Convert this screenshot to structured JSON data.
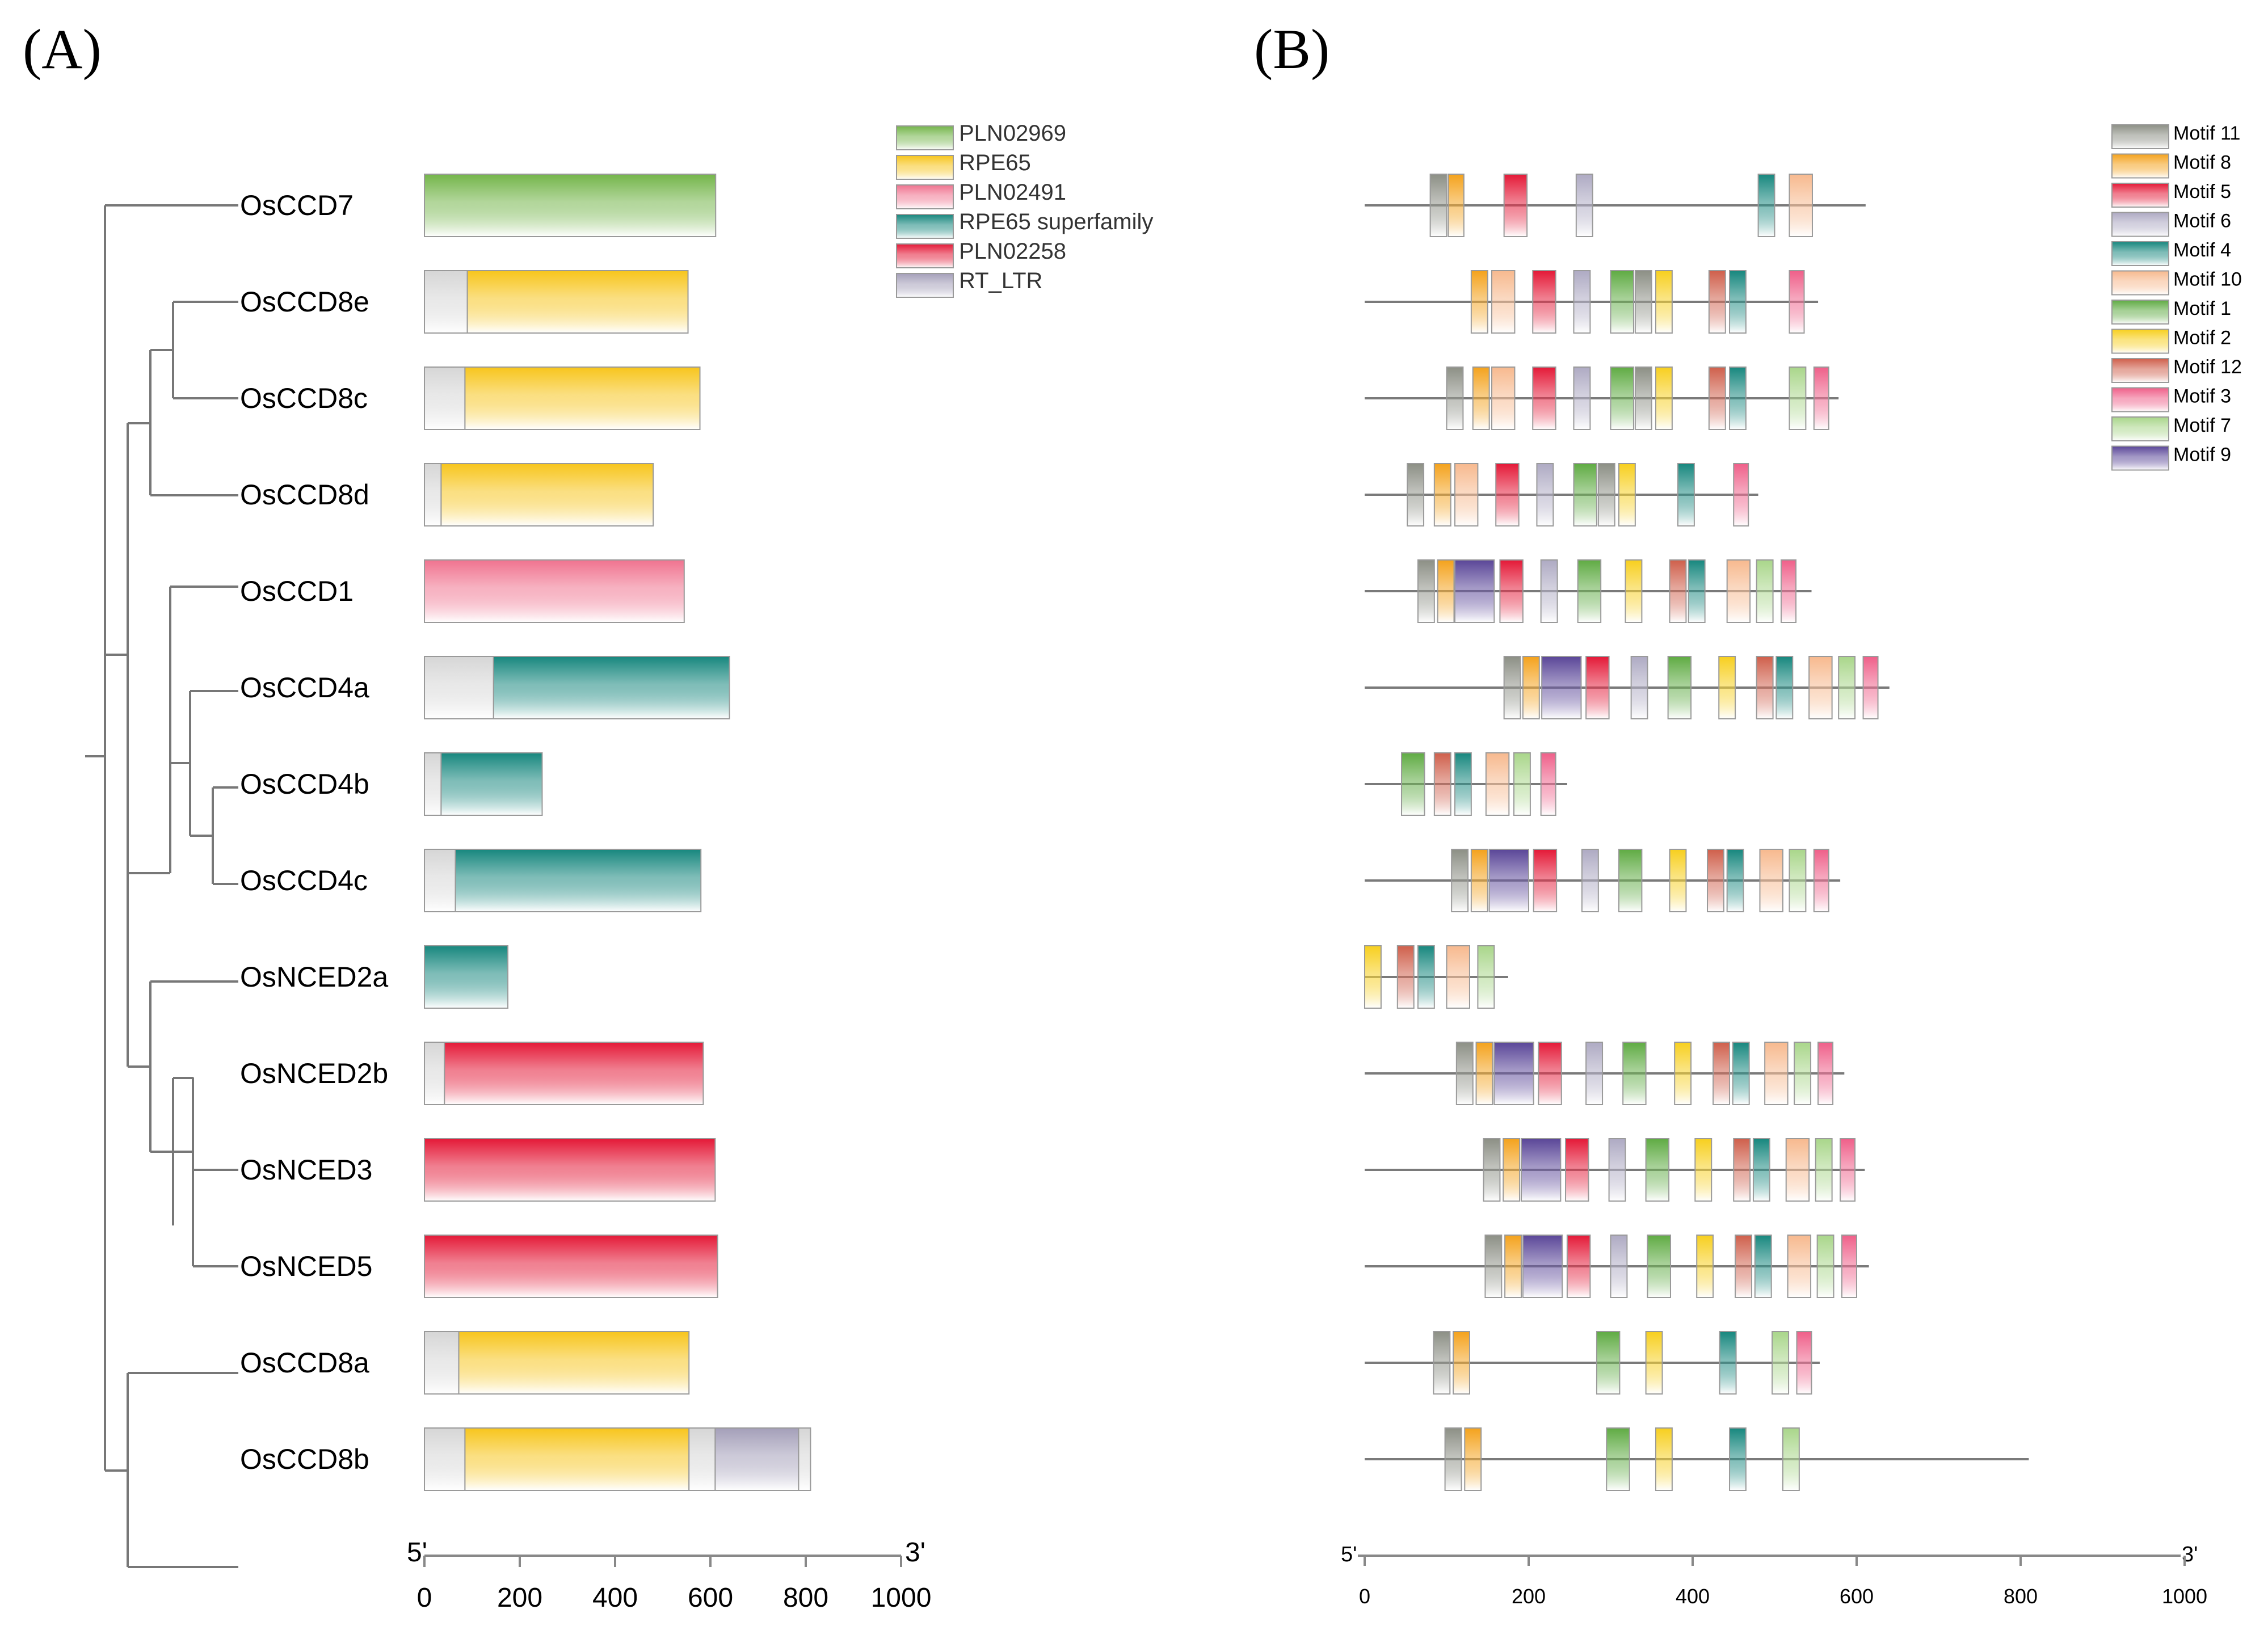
{
  "figure": {
    "panel_a_label": "(A)",
    "panel_b_label": "(B)"
  },
  "colors": {
    "PLN02969": "#74b54a",
    "RPE65": "#f7c51c",
    "PLN02491": "#f0738f",
    "RPE65 superfamily": "#17877e",
    "PLN02258": "#e41937",
    "RT_LTR": "#a49fb9",
    "background_domain": "#d6d6d6",
    "Motif 11": "#8c8f85",
    "Motif 8": "#f4a21c",
    "Motif 5": "#e41937",
    "Motif 6": "#aeaac3",
    "Motif 4": "#17877e",
    "Motif 10": "#f7b98e",
    "Motif 1": "#5fab43",
    "Motif 2": "#f7cf1e",
    "Motif 12": "#cf5f4b",
    "Motif 3": "#ef5f89",
    "Motif 7": "#a9d68a",
    "Motif 9": "#5a4698"
  },
  "domain_legend": [
    "PLN02969",
    "RPE65",
    "PLN02491",
    "RPE65 superfamily",
    "PLN02258",
    "RT_LTR"
  ],
  "motif_legend": [
    "Motif 11",
    "Motif 8",
    "Motif 5",
    "Motif 6",
    "Motif 4",
    "Motif 10",
    "Motif 1",
    "Motif 2",
    "Motif 12",
    "Motif 3",
    "Motif 7",
    "Motif 9"
  ],
  "axis_a": {
    "start_label": "5'",
    "end_label": "3'",
    "range": [
      0,
      1000
    ],
    "ticks": [
      0,
      200,
      400,
      600,
      800,
      1000
    ]
  },
  "axis_b": {
    "start_label": "5'",
    "end_label": "3'",
    "range": [
      0,
      1000
    ],
    "ticks": [
      0,
      200,
      400,
      600,
      800,
      1000
    ]
  },
  "genes": [
    {
      "name": "OsCCD7",
      "length": 611,
      "domains": [
        {
          "type": "PLN02969",
          "start": 0,
          "end": 611
        }
      ],
      "motifs": [
        {
          "m": "Motif 11",
          "s": 80,
          "e": 100
        },
        {
          "m": "Motif 8",
          "s": 102,
          "e": 121
        },
        {
          "m": "Motif 5",
          "s": 170,
          "e": 198
        },
        {
          "m": "Motif 6",
          "s": 258,
          "e": 278
        },
        {
          "m": "Motif 4",
          "s": 480,
          "e": 500
        },
        {
          "m": "Motif 10",
          "s": 518,
          "e": 546
        }
      ]
    },
    {
      "name": "OsCCD8e",
      "length": 553,
      "domains": [
        {
          "type": "bg",
          "start": 0,
          "end": 90
        },
        {
          "type": "RPE65",
          "start": 90,
          "end": 553
        }
      ],
      "motifs": [
        {
          "m": "Motif 8",
          "s": 130,
          "e": 150
        },
        {
          "m": "Motif 10",
          "s": 155,
          "e": 183
        },
        {
          "m": "Motif 5",
          "s": 205,
          "e": 233
        },
        {
          "m": "Motif 6",
          "s": 255,
          "e": 275
        },
        {
          "m": "Motif 1",
          "s": 300,
          "e": 328
        },
        {
          "m": "Motif 11",
          "s": 330,
          "e": 350
        },
        {
          "m": "Motif 2",
          "s": 355,
          "e": 375
        },
        {
          "m": "Motif 12",
          "s": 420,
          "e": 440
        },
        {
          "m": "Motif 4",
          "s": 445,
          "e": 465
        },
        {
          "m": "Motif 3",
          "s": 518,
          "e": 536
        }
      ]
    },
    {
      "name": "OsCCD8c",
      "length": 578,
      "domains": [
        {
          "type": "bg",
          "start": 0,
          "end": 85
        },
        {
          "type": "RPE65",
          "start": 85,
          "end": 578
        }
      ],
      "motifs": [
        {
          "m": "Motif 11",
          "s": 100,
          "e": 120
        },
        {
          "m": "Motif 8",
          "s": 132,
          "e": 152
        },
        {
          "m": "Motif 10",
          "s": 155,
          "e": 183
        },
        {
          "m": "Motif 5",
          "s": 205,
          "e": 233
        },
        {
          "m": "Motif 6",
          "s": 255,
          "e": 275
        },
        {
          "m": "Motif 1",
          "s": 300,
          "e": 328
        },
        {
          "m": "Motif 11",
          "s": 330,
          "e": 350
        },
        {
          "m": "Motif 2",
          "s": 355,
          "e": 375
        },
        {
          "m": "Motif 12",
          "s": 420,
          "e": 440
        },
        {
          "m": "Motif 4",
          "s": 445,
          "e": 465
        },
        {
          "m": "Motif 7",
          "s": 518,
          "e": 538
        },
        {
          "m": "Motif 3",
          "s": 548,
          "e": 566
        }
      ]
    },
    {
      "name": "OsCCD8d",
      "length": 480,
      "domains": [
        {
          "type": "bg",
          "start": 0,
          "end": 35
        },
        {
          "type": "RPE65",
          "start": 35,
          "end": 480
        }
      ],
      "motifs": [
        {
          "m": "Motif 11",
          "s": 52,
          "e": 72
        },
        {
          "m": "Motif 8",
          "s": 85,
          "e": 105
        },
        {
          "m": "Motif 10",
          "s": 110,
          "e": 138
        },
        {
          "m": "Motif 5",
          "s": 160,
          "e": 188
        },
        {
          "m": "Motif 6",
          "s": 210,
          "e": 230
        },
        {
          "m": "Motif 1",
          "s": 255,
          "e": 283
        },
        {
          "m": "Motif 11",
          "s": 285,
          "e": 305
        },
        {
          "m": "Motif 2",
          "s": 310,
          "e": 330
        },
        {
          "m": "Motif 4",
          "s": 382,
          "e": 402
        },
        {
          "m": "Motif 3",
          "s": 450,
          "e": 468
        }
      ]
    },
    {
      "name": "OsCCD1",
      "length": 545,
      "domains": [
        {
          "type": "PLN02491",
          "start": 0,
          "end": 545
        }
      ],
      "motifs": [
        {
          "m": "Motif 11",
          "s": 65,
          "e": 85
        },
        {
          "m": "Motif 8",
          "s": 89,
          "e": 109
        },
        {
          "m": "Motif 9",
          "s": 110,
          "e": 158
        },
        {
          "m": "Motif 5",
          "s": 165,
          "e": 193
        },
        {
          "m": "Motif 6",
          "s": 215,
          "e": 235
        },
        {
          "m": "Motif 1",
          "s": 260,
          "e": 288
        },
        {
          "m": "Motif 2",
          "s": 318,
          "e": 338
        },
        {
          "m": "Motif 12",
          "s": 372,
          "e": 392
        },
        {
          "m": "Motif 4",
          "s": 395,
          "e": 415
        },
        {
          "m": "Motif 10",
          "s": 442,
          "e": 470
        },
        {
          "m": "Motif 7",
          "s": 478,
          "e": 498
        },
        {
          "m": "Motif 3",
          "s": 508,
          "e": 526
        }
      ]
    },
    {
      "name": "OsCCD4a",
      "length": 640,
      "domains": [
        {
          "type": "bg",
          "start": 0,
          "end": 145
        },
        {
          "type": "RPE65 superfamily",
          "start": 145,
          "end": 640
        }
      ],
      "motifs": [
        {
          "m": "Motif 11",
          "s": 170,
          "e": 190
        },
        {
          "m": "Motif 8",
          "s": 193,
          "e": 213
        },
        {
          "m": "Motif 9",
          "s": 216,
          "e": 264
        },
        {
          "m": "Motif 5",
          "s": 270,
          "e": 298
        },
        {
          "m": "Motif 6",
          "s": 325,
          "e": 345
        },
        {
          "m": "Motif 1",
          "s": 370,
          "e": 398
        },
        {
          "m": "Motif 2",
          "s": 432,
          "e": 452
        },
        {
          "m": "Motif 12",
          "s": 478,
          "e": 498
        },
        {
          "m": "Motif 4",
          "s": 502,
          "e": 522
        },
        {
          "m": "Motif 10",
          "s": 542,
          "e": 570
        },
        {
          "m": "Motif 7",
          "s": 578,
          "e": 598
        },
        {
          "m": "Motif 3",
          "s": 608,
          "e": 626
        }
      ]
    },
    {
      "name": "OsCCD4b",
      "length": 247,
      "domains": [
        {
          "type": "bg",
          "start": 0,
          "end": 35
        },
        {
          "type": "RPE65 superfamily",
          "start": 35,
          "end": 247
        }
      ],
      "motifs": [
        {
          "m": "Motif 1",
          "s": 45,
          "e": 73
        },
        {
          "m": "Motif 12",
          "s": 85,
          "e": 105
        },
        {
          "m": "Motif 4",
          "s": 110,
          "e": 130
        },
        {
          "m": "Motif 10",
          "s": 148,
          "e": 176
        },
        {
          "m": "Motif 7",
          "s": 182,
          "e": 202
        },
        {
          "m": "Motif 3",
          "s": 215,
          "e": 233
        }
      ]
    },
    {
      "name": "OsCCD4c",
      "length": 580,
      "domains": [
        {
          "type": "bg",
          "start": 0,
          "end": 65
        },
        {
          "type": "RPE65 superfamily",
          "start": 65,
          "end": 580
        }
      ],
      "motifs": [
        {
          "m": "Motif 11",
          "s": 106,
          "e": 126
        },
        {
          "m": "Motif 8",
          "s": 130,
          "e": 150
        },
        {
          "m": "Motif 9",
          "s": 152,
          "e": 200
        },
        {
          "m": "Motif 5",
          "s": 206,
          "e": 234
        },
        {
          "m": "Motif 6",
          "s": 265,
          "e": 285
        },
        {
          "m": "Motif 1",
          "s": 310,
          "e": 338
        },
        {
          "m": "Motif 2",
          "s": 372,
          "e": 392
        },
        {
          "m": "Motif 12",
          "s": 418,
          "e": 438
        },
        {
          "m": "Motif 4",
          "s": 442,
          "e": 462
        },
        {
          "m": "Motif 10",
          "s": 482,
          "e": 510
        },
        {
          "m": "Motif 7",
          "s": 518,
          "e": 538
        },
        {
          "m": "Motif 3",
          "s": 548,
          "e": 566
        }
      ]
    },
    {
      "name": "OsNCED2a",
      "length": 175,
      "domains": [
        {
          "type": "RPE65 superfamily",
          "start": 0,
          "end": 175
        }
      ],
      "motifs": [
        {
          "m": "Motif 2",
          "s": 0,
          "e": 20
        },
        {
          "m": "Motif 12",
          "s": 40,
          "e": 60
        },
        {
          "m": "Motif 4",
          "s": 65,
          "e": 85
        },
        {
          "m": "Motif 10",
          "s": 100,
          "e": 128
        },
        {
          "m": "Motif 7",
          "s": 138,
          "e": 158
        }
      ]
    },
    {
      "name": "OsNCED2b",
      "length": 585,
      "domains": [
        {
          "type": "bg",
          "start": 0,
          "end": 42
        },
        {
          "type": "PLN02258",
          "start": 42,
          "end": 585
        }
      ],
      "motifs": [
        {
          "m": "Motif 11",
          "s": 112,
          "e": 132
        },
        {
          "m": "Motif 8",
          "s": 136,
          "e": 156
        },
        {
          "m": "Motif 9",
          "s": 158,
          "e": 206
        },
        {
          "m": "Motif 5",
          "s": 212,
          "e": 240
        },
        {
          "m": "Motif 6",
          "s": 270,
          "e": 290
        },
        {
          "m": "Motif 1",
          "s": 315,
          "e": 343
        },
        {
          "m": "Motif 2",
          "s": 378,
          "e": 398
        },
        {
          "m": "Motif 12",
          "s": 425,
          "e": 445
        },
        {
          "m": "Motif 4",
          "s": 449,
          "e": 469
        },
        {
          "m": "Motif 10",
          "s": 488,
          "e": 516
        },
        {
          "m": "Motif 7",
          "s": 524,
          "e": 544
        },
        {
          "m": "Motif 3",
          "s": 553,
          "e": 571
        }
      ]
    },
    {
      "name": "OsNCED3",
      "length": 610,
      "domains": [
        {
          "type": "PLN02258",
          "start": 0,
          "end": 610
        }
      ],
      "motifs": [
        {
          "m": "Motif 11",
          "s": 145,
          "e": 165
        },
        {
          "m": "Motif 8",
          "s": 169,
          "e": 189
        },
        {
          "m": "Motif 9",
          "s": 191,
          "e": 239
        },
        {
          "m": "Motif 5",
          "s": 245,
          "e": 273
        },
        {
          "m": "Motif 6",
          "s": 298,
          "e": 318
        },
        {
          "m": "Motif 1",
          "s": 343,
          "e": 371
        },
        {
          "m": "Motif 2",
          "s": 403,
          "e": 423
        },
        {
          "m": "Motif 12",
          "s": 450,
          "e": 470
        },
        {
          "m": "Motif 4",
          "s": 474,
          "e": 494
        },
        {
          "m": "Motif 10",
          "s": 514,
          "e": 542
        },
        {
          "m": "Motif 7",
          "s": 550,
          "e": 570
        },
        {
          "m": "Motif 3",
          "s": 580,
          "e": 598
        }
      ]
    },
    {
      "name": "OsNCED5",
      "length": 615,
      "domains": [
        {
          "type": "PLN02258",
          "start": 0,
          "end": 615
        }
      ],
      "motifs": [
        {
          "m": "Motif 11",
          "s": 147,
          "e": 167
        },
        {
          "m": "Motif 8",
          "s": 171,
          "e": 191
        },
        {
          "m": "Motif 9",
          "s": 193,
          "e": 241
        },
        {
          "m": "Motif 5",
          "s": 247,
          "e": 275
        },
        {
          "m": "Motif 6",
          "s": 300,
          "e": 320
        },
        {
          "m": "Motif 1",
          "s": 345,
          "e": 373
        },
        {
          "m": "Motif 2",
          "s": 405,
          "e": 425
        },
        {
          "m": "Motif 12",
          "s": 452,
          "e": 472
        },
        {
          "m": "Motif 4",
          "s": 476,
          "e": 496
        },
        {
          "m": "Motif 10",
          "s": 516,
          "e": 544
        },
        {
          "m": "Motif 7",
          "s": 552,
          "e": 572
        },
        {
          "m": "Motif 3",
          "s": 582,
          "e": 600
        }
      ]
    },
    {
      "name": "OsCCD8a",
      "length": 555,
      "domains": [
        {
          "type": "bg",
          "start": 0,
          "end": 72
        },
        {
          "type": "RPE65",
          "start": 72,
          "end": 555
        }
      ],
      "motifs": [
        {
          "m": "Motif 11",
          "s": 84,
          "e": 104
        },
        {
          "m": "Motif 8",
          "s": 108,
          "e": 128
        },
        {
          "m": "Motif 1",
          "s": 283,
          "e": 311
        },
        {
          "m": "Motif 2",
          "s": 343,
          "e": 363
        },
        {
          "m": "Motif 4",
          "s": 433,
          "e": 453
        },
        {
          "m": "Motif 7",
          "s": 497,
          "e": 517
        },
        {
          "m": "Motif 3",
          "s": 527,
          "e": 545
        }
      ]
    },
    {
      "name": "OsCCD8b",
      "length": 810,
      "domains": [
        {
          "type": "bg",
          "start": 0,
          "end": 85
        },
        {
          "type": "RPE65",
          "start": 85,
          "end": 555
        },
        {
          "type": "bg",
          "start": 555,
          "end": 610
        },
        {
          "type": "RT_LTR",
          "start": 610,
          "end": 785
        },
        {
          "type": "bg",
          "start": 785,
          "end": 810
        }
      ],
      "motifs": [
        {
          "m": "Motif 11",
          "s": 98,
          "e": 118
        },
        {
          "m": "Motif 8",
          "s": 122,
          "e": 142
        },
        {
          "m": "Motif 1",
          "s": 295,
          "e": 323
        },
        {
          "m": "Motif 2",
          "s": 355,
          "e": 375
        },
        {
          "m": "Motif 4",
          "s": 445,
          "e": 465
        },
        {
          "m": "Motif 7",
          "s": 510,
          "e": 530
        }
      ]
    }
  ]
}
